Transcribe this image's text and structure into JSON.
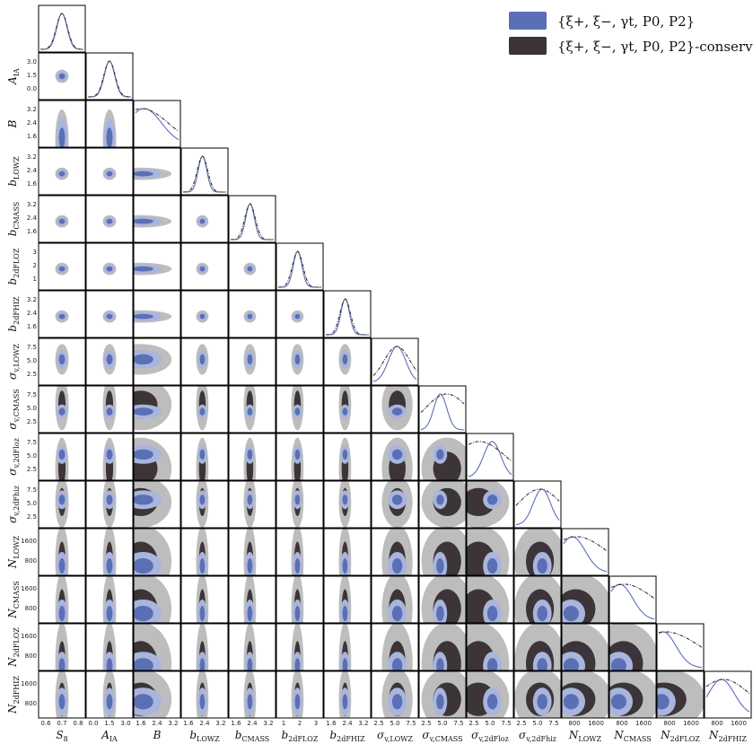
{
  "chart_data": {
    "type": "corner",
    "parameters": [
      {
        "base": "S",
        "sub": "8",
        "xticks": [
          "0.6",
          "0.7",
          "0.8"
        ],
        "yticks": []
      },
      {
        "base": "A",
        "sub": "IA",
        "xticks": [
          "0.0",
          "1.5",
          "3.0"
        ],
        "yticks": [
          "3.0",
          "1.5",
          "0.0"
        ]
      },
      {
        "base": "B",
        "sub": "",
        "xticks": [
          "1.6",
          "2.4",
          "3.2"
        ],
        "yticks": [
          "3.2",
          "2.4",
          "1.6"
        ]
      },
      {
        "base": "b",
        "sub": "LOWZ",
        "xticks": [
          "1.6",
          "2.4",
          "3.2"
        ],
        "yticks": [
          "3.2",
          "2.4",
          "1.6"
        ]
      },
      {
        "base": "b",
        "sub": "CMASS",
        "xticks": [
          "1.6",
          "2.4",
          "3.2"
        ],
        "yticks": [
          "3.2",
          "2.4",
          "1.6"
        ]
      },
      {
        "base": "b",
        "sub": "2dFLOZ",
        "xticks": [
          "1",
          "2",
          "3"
        ],
        "yticks": [
          "3",
          "2",
          "1"
        ]
      },
      {
        "base": "b",
        "sub": "2dFHIZ",
        "xticks": [
          "1.6",
          "2.4",
          "3.2"
        ],
        "yticks": [
          "3.2",
          "2.4",
          "1.6"
        ]
      },
      {
        "base": "σ",
        "sub": "v,LOWZ",
        "xticks": [
          "2.5",
          "5.0",
          "7.5"
        ],
        "yticks": [
          "7.5",
          "5.0",
          "2.5"
        ]
      },
      {
        "base": "σ",
        "sub": "v,CMASS",
        "xticks": [
          "2.5",
          "5.0",
          "7.5"
        ],
        "yticks": [
          "7.5",
          "5.0",
          "2.5"
        ]
      },
      {
        "base": "σ",
        "sub": "v,2dFloz",
        "xticks": [
          "2.5",
          "5.0",
          "7.5"
        ],
        "yticks": [
          "7.5",
          "5.0",
          "2.5"
        ]
      },
      {
        "base": "σ",
        "sub": "v,2dFhiz",
        "xticks": [
          "2.5",
          "5.0",
          "7.5"
        ],
        "yticks": [
          "7.5",
          "5.0",
          "2.5"
        ]
      },
      {
        "base": "N",
        "sub": "LOWZ",
        "xticks": [
          "800",
          "1600"
        ],
        "yticks": [
          "1600",
          "800"
        ]
      },
      {
        "base": "N",
        "sub": "CMASS",
        "xticks": [
          "800",
          "1600"
        ],
        "yticks": [
          "1600",
          "800"
        ]
      },
      {
        "base": "N",
        "sub": "2dFLOZ",
        "xticks": [
          "800",
          "1600"
        ],
        "yticks": [
          "1600",
          "800"
        ]
      },
      {
        "base": "N",
        "sub": "2dFHIZ",
        "xticks": [
          "800",
          "1600"
        ],
        "yticks": [
          "1600",
          "800"
        ]
      }
    ],
    "series": [
      {
        "name": "{ξ+, ξ−, γt, P0, P2}",
        "color": "#5b6fb5",
        "light_color": "#a9b5dc",
        "line_style": "solid"
      },
      {
        "name": "{ξ+, ξ−, γt, P0, P2}-conserv",
        "color": "#3c3438",
        "light_color": "#bdbdbd",
        "line_style": "dashdot"
      }
    ],
    "marginal_peaks": {
      "fiducial": [
        0.5,
        0.5,
        0.2,
        0.45,
        0.45,
        0.45,
        0.45,
        0.55,
        0.45,
        0.55,
        0.6,
        0.2,
        0.2,
        0.1,
        0.35
      ],
      "conservative": [
        0.5,
        0.5,
        0.15,
        0.45,
        0.45,
        0.45,
        0.45,
        0.55,
        0.6,
        0.25,
        0.55,
        0.3,
        0.3,
        0.15,
        0.4
      ]
    },
    "marginal_widths": {
      "fiducial": [
        0.12,
        0.12,
        0.4,
        0.1,
        0.1,
        0.1,
        0.1,
        0.2,
        0.15,
        0.2,
        0.2,
        0.3,
        0.3,
        0.3,
        0.3
      ],
      "conservative": [
        0.13,
        0.13,
        0.6,
        0.12,
        0.12,
        0.12,
        0.12,
        0.3,
        0.5,
        0.6,
        0.5,
        0.7,
        0.7,
        0.8,
        0.6
      ]
    },
    "grid": false,
    "legend_position": "top-right"
  }
}
